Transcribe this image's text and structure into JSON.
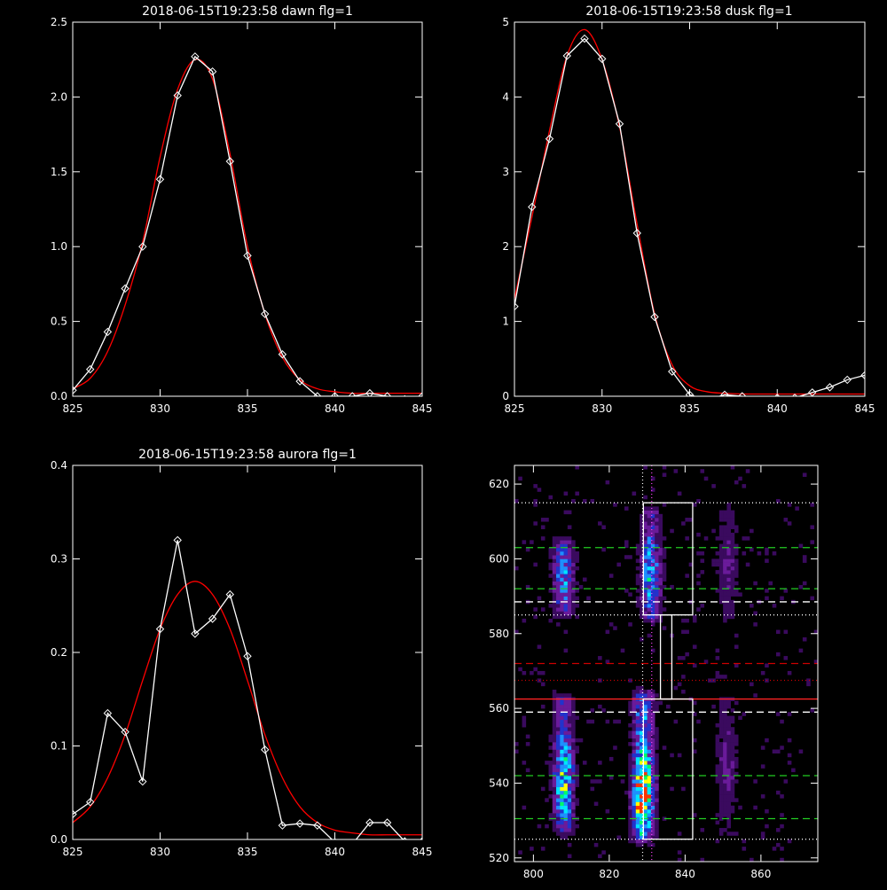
{
  "chart_data": [
    {
      "type": "line",
      "title": "2018-06-15T19:23:58 dawn flg=1",
      "xlim": [
        825,
        845
      ],
      "ylim": [
        0,
        2.5
      ],
      "xticks": [
        825,
        830,
        835,
        840,
        845
      ],
      "yticks": [
        0.0,
        0.5,
        1.0,
        1.5,
        2.0,
        2.5
      ],
      "ytick_labels": [
        "0.0",
        "0.5",
        "1.0",
        "1.5",
        "2.0",
        "2.5"
      ],
      "series": [
        {
          "color": "#ffffff",
          "marker": "diamond",
          "x": [
            825,
            826,
            827,
            828,
            829,
            830,
            831,
            832,
            833,
            834,
            835,
            836,
            837,
            838,
            839,
            840,
            841,
            842,
            843,
            844,
            845
          ],
          "y": [
            0.04,
            0.18,
            0.43,
            0.72,
            1.0,
            1.45,
            2.01,
            2.27,
            2.17,
            1.57,
            0.94,
            0.55,
            0.28,
            0.1,
            0.0,
            0.0,
            0.0,
            0.02,
            0.0,
            -0.02,
            0.0
          ]
        },
        {
          "color": "#ff0000",
          "x": [
            825,
            826,
            827,
            828,
            829,
            830,
            831,
            832,
            833,
            834,
            835,
            836,
            837,
            838,
            839,
            840,
            841,
            842,
            843,
            844,
            845
          ],
          "y": [
            0.05,
            0.12,
            0.3,
            0.61,
            1.03,
            1.6,
            2.05,
            2.25,
            2.12,
            1.62,
            1.0,
            0.55,
            0.26,
            0.11,
            0.05,
            0.03,
            0.02,
            0.02,
            0.02,
            0.02,
            0.02
          ]
        }
      ]
    },
    {
      "type": "line",
      "title": "2018-06-15T19:23:58 dusk flg=1",
      "xlim": [
        825,
        845
      ],
      "ylim": [
        0,
        5
      ],
      "xticks": [
        825,
        830,
        835,
        840,
        845
      ],
      "yticks": [
        0,
        1,
        2,
        3,
        4,
        5
      ],
      "ytick_labels": [
        "0",
        "1",
        "2",
        "3",
        "4",
        "5"
      ],
      "series": [
        {
          "color": "#ffffff",
          "marker": "diamond",
          "x": [
            825,
            826,
            827,
            828,
            829,
            830,
            831,
            832,
            833,
            834,
            835,
            836,
            837,
            838,
            839,
            840,
            841,
            842,
            843,
            844,
            845
          ],
          "y": [
            1.2,
            2.53,
            3.44,
            4.55,
            4.78,
            4.51,
            3.64,
            2.18,
            1.06,
            0.33,
            0.02,
            -0.05,
            0.02,
            0.0,
            -0.05,
            -0.02,
            -0.02,
            0.05,
            0.12,
            0.22,
            0.28
          ]
        },
        {
          "color": "#ff0000",
          "x": [
            825,
            826,
            827,
            828,
            829,
            830,
            831,
            832,
            833,
            834,
            835,
            836,
            837,
            838,
            839,
            840,
            841,
            842,
            843,
            844,
            845
          ],
          "y": [
            1.3,
            2.4,
            3.55,
            4.55,
            4.9,
            4.5,
            3.6,
            2.3,
            1.1,
            0.42,
            0.14,
            0.06,
            0.04,
            0.03,
            0.03,
            0.03,
            0.03,
            0.03,
            0.03,
            0.03,
            0.03
          ]
        }
      ]
    },
    {
      "type": "line",
      "title": "2018-06-15T19:23:58 aurora flg=1",
      "xlim": [
        825,
        845
      ],
      "ylim": [
        0,
        0.4
      ],
      "xticks": [
        825,
        830,
        835,
        840,
        845
      ],
      "yticks": [
        0.0,
        0.1,
        0.2,
        0.3,
        0.4
      ],
      "ytick_labels": [
        "0.0",
        "0.1",
        "0.2",
        "0.3",
        "0.4"
      ],
      "series": [
        {
          "color": "#ffffff",
          "marker": "diamond",
          "x": [
            825,
            826,
            827,
            828,
            829,
            830,
            831,
            832,
            833,
            834,
            835,
            836,
            837,
            838,
            839,
            840,
            841,
            842,
            843,
            844,
            845
          ],
          "y": [
            0.027,
            0.04,
            0.135,
            0.115,
            0.062,
            0.225,
            0.32,
            0.22,
            0.236,
            0.262,
            0.196,
            0.096,
            0.015,
            0.017,
            0.015,
            -0.003,
            -0.005,
            0.018,
            0.018,
            -0.002,
            -0.002
          ]
        },
        {
          "color": "#ff0000",
          "x": [
            825,
            826,
            827,
            828,
            829,
            830,
            831,
            832,
            833,
            834,
            835,
            836,
            837,
            838,
            839,
            840,
            841,
            842,
            843,
            844,
            845
          ],
          "y": [
            0.018,
            0.035,
            0.066,
            0.112,
            0.17,
            0.225,
            0.262,
            0.276,
            0.262,
            0.225,
            0.17,
            0.112,
            0.066,
            0.035,
            0.018,
            0.01,
            0.007,
            0.005,
            0.005,
            0.005,
            0.005
          ]
        }
      ]
    },
    {
      "type": "heatmap",
      "xlim": [
        795,
        875
      ],
      "ylim": [
        519,
        625
      ],
      "xticks": [
        800,
        820,
        840,
        860
      ],
      "yticks": [
        520,
        540,
        560,
        580,
        600,
        620
      ],
      "colormap": [
        "#000000",
        "#3a0a5e",
        "#6a1b9a",
        "#2233cc",
        "#1e90ff",
        "#00e5ff",
        "#00ff66",
        "#ffff00",
        "#ff3300"
      ],
      "emission_bands": [
        {
          "x_center": 808,
          "y_range": [
            528,
            562
          ],
          "peak_y": 541,
          "peak": 0.65
        },
        {
          "x_center": 808,
          "y_range": [
            586,
            604
          ],
          "peak_y": 596,
          "peak": 0.45
        },
        {
          "x_center": 829,
          "y_range": [
            526,
            563
          ],
          "peak_y": 537,
          "peak": 1.0
        },
        {
          "x_center": 831,
          "y_range": [
            585,
            612
          ],
          "peak_y": 596,
          "peak": 0.55
        },
        {
          "x_center": 851,
          "y_range": [
            527,
            562
          ],
          "peak_y": 545,
          "peak": 0.22
        },
        {
          "x_center": 851,
          "y_range": [
            585,
            612
          ],
          "peak_y": 598,
          "peak": 0.2
        }
      ],
      "boxes": [
        {
          "x": [
            829,
            842
          ],
          "y": [
            585,
            615
          ]
        },
        {
          "x": [
            833.5,
            836.5
          ],
          "y": [
            562.5,
            585
          ]
        },
        {
          "x": [
            829,
            842
          ],
          "y": [
            525,
            562.5
          ]
        }
      ],
      "vlines": [
        {
          "x": 828.8,
          "color": "#ffffff",
          "style": "dotted"
        },
        {
          "x": 831.2,
          "color": "#ff44ff",
          "style": "dotted"
        }
      ],
      "hlines": [
        {
          "y": 615,
          "color": "#ffffff",
          "style": "dotted"
        },
        {
          "y": 603,
          "color": "#22cc22",
          "style": "dashed"
        },
        {
          "y": 592,
          "color": "#22cc22",
          "style": "dashed"
        },
        {
          "y": 588.5,
          "color": "#ffffff",
          "style": "dashed"
        },
        {
          "y": 585,
          "color": "#ffffff",
          "style": "dotted"
        },
        {
          "y": 572,
          "color": "#cc0000",
          "style": "dashed"
        },
        {
          "y": 567.5,
          "color": "#cc0000",
          "style": "dotted"
        },
        {
          "y": 562.5,
          "color": "#ff2222",
          "style": "solid"
        },
        {
          "y": 559,
          "color": "#ffffff",
          "style": "dashed"
        },
        {
          "y": 542,
          "color": "#22cc22",
          "style": "dashed"
        },
        {
          "y": 530.5,
          "color": "#22cc22",
          "style": "dashed"
        },
        {
          "y": 525,
          "color": "#ffffff",
          "style": "dotted"
        }
      ]
    }
  ]
}
